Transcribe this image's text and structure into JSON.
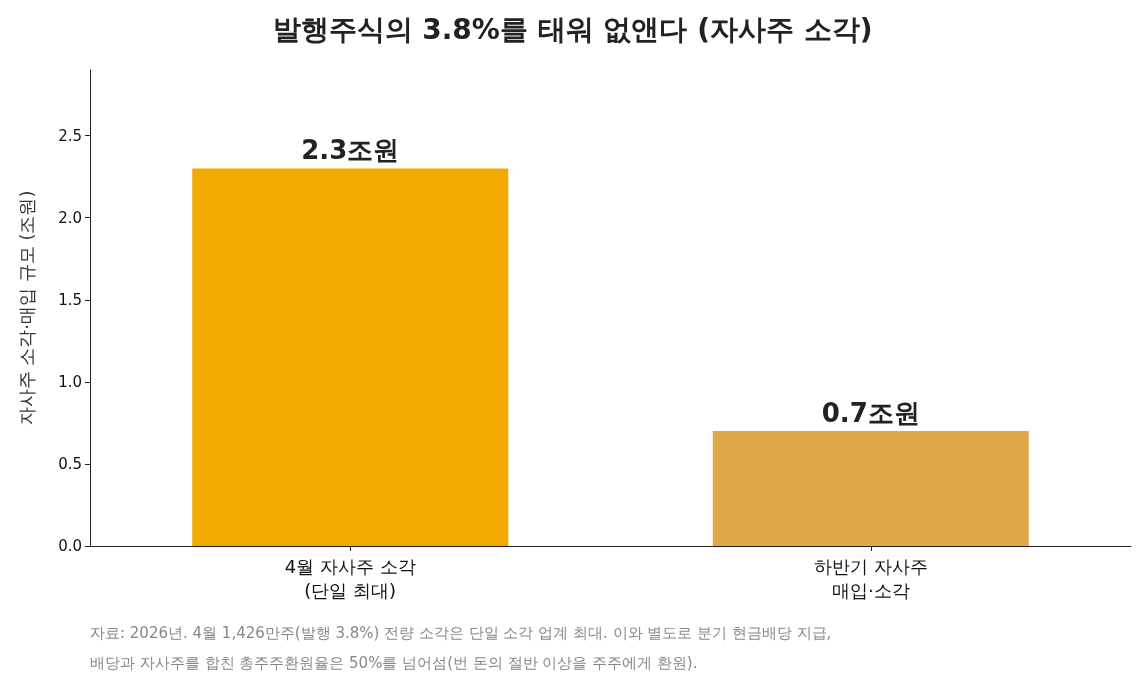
{
  "chart_data": {
    "type": "bar",
    "title": "발행주식의 3.8%를 태워 없앤다 (자사주 소각)",
    "ylabel": "자사주 소각·매입 규모 (조원)",
    "categories": [
      "4월 자사주 소각\n(단일 최대)",
      "하반기 자사주\n매입·소각"
    ],
    "values": [
      2.3,
      0.7
    ],
    "colors": [
      "#f2a900",
      "#e0a948"
    ],
    "value_labels": [
      "2.3조원",
      "0.7조원"
    ],
    "ylim": [
      0,
      2.9
    ],
    "yticks": [
      {
        "value": 0,
        "label": "0.0"
      },
      0.5,
      {
        "value": 1,
        "label": "1.0"
      },
      1.5,
      {
        "value": 2,
        "label": "2.0"
      },
      2.5
    ],
    "grid": false,
    "annotations": [
      "자료: 2026년. 4월 1,426만주(발행 3.8%) 전량 소각은 단일 소각 업계 최대. 이와 별도로 분기 현금배당 지급,",
      "배당과 자사주를 합친 총주주환원율은 50%를 넘어섬(번 돈의 절반 이상을 주주에게 환원)."
    ]
  }
}
